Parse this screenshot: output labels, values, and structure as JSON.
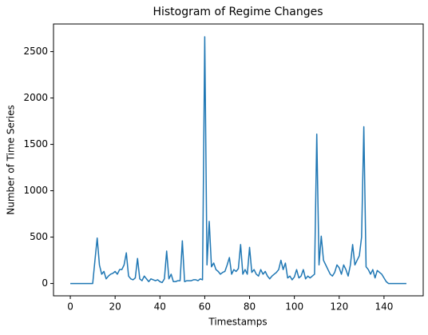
{
  "chart_data": {
    "type": "line",
    "title": "Histogram of Regime Changes",
    "xlabel": "Timestamps",
    "ylabel": "Number of Time Series",
    "x": [
      0,
      10,
      11,
      12,
      13,
      14,
      15,
      16,
      17,
      18,
      19,
      20,
      21,
      22,
      23,
      24,
      25,
      26,
      27,
      28,
      29,
      30,
      31,
      32,
      33,
      34,
      35,
      36,
      37,
      38,
      39,
      40,
      41,
      42,
      43,
      44,
      45,
      46,
      47,
      48,
      49,
      50,
      51,
      52,
      53,
      54,
      55,
      56,
      57,
      58,
      59,
      60,
      61,
      62,
      63,
      64,
      65,
      66,
      67,
      68,
      69,
      70,
      71,
      72,
      73,
      74,
      75,
      76,
      77,
      78,
      79,
      80,
      81,
      82,
      83,
      84,
      85,
      86,
      87,
      88,
      89,
      90,
      91,
      92,
      93,
      94,
      95,
      96,
      97,
      98,
      99,
      100,
      101,
      102,
      103,
      104,
      105,
      106,
      107,
      108,
      109,
      110,
      111,
      112,
      113,
      114,
      115,
      116,
      117,
      118,
      119,
      120,
      121,
      122,
      123,
      124,
      125,
      126,
      127,
      128,
      129,
      130,
      131,
      132,
      133,
      134,
      135,
      136,
      137,
      138,
      139,
      140,
      141,
      142,
      150
    ],
    "series": [
      {
        "name": "Number of Time Series",
        "color": "#1f77b4",
        "values": [
          0,
          0,
          250,
          490,
          200,
          100,
          130,
          50,
          80,
          100,
          110,
          130,
          100,
          150,
          150,
          200,
          330,
          80,
          50,
          40,
          60,
          270,
          50,
          30,
          80,
          50,
          20,
          50,
          40,
          30,
          40,
          20,
          10,
          50,
          350,
          50,
          100,
          20,
          20,
          30,
          30,
          460,
          20,
          30,
          30,
          30,
          40,
          40,
          30,
          50,
          40,
          2660,
          200,
          670,
          180,
          220,
          150,
          130,
          100,
          120,
          130,
          200,
          280,
          100,
          150,
          130,
          160,
          420,
          100,
          150,
          100,
          390,
          120,
          150,
          100,
          80,
          150,
          100,
          130,
          80,
          50,
          80,
          100,
          120,
          150,
          250,
          150,
          220,
          60,
          80,
          40,
          70,
          150,
          60,
          80,
          150,
          50,
          80,
          60,
          80,
          100,
          1610,
          200,
          510,
          250,
          200,
          150,
          100,
          80,
          120,
          200,
          170,
          100,
          200,
          150,
          80,
          200,
          420,
          200,
          250,
          300,
          500,
          1690,
          180,
          150,
          100,
          150,
          60,
          140,
          120,
          100,
          60,
          20,
          0,
          0
        ]
      }
    ],
    "xlim": [
      -7.5,
      157.5
    ],
    "ylim": [
      -133,
      2798
    ],
    "xticks": [
      0,
      20,
      40,
      60,
      80,
      100,
      120,
      140
    ],
    "yticks": [
      0,
      500,
      1000,
      1500,
      2000,
      2500
    ]
  }
}
